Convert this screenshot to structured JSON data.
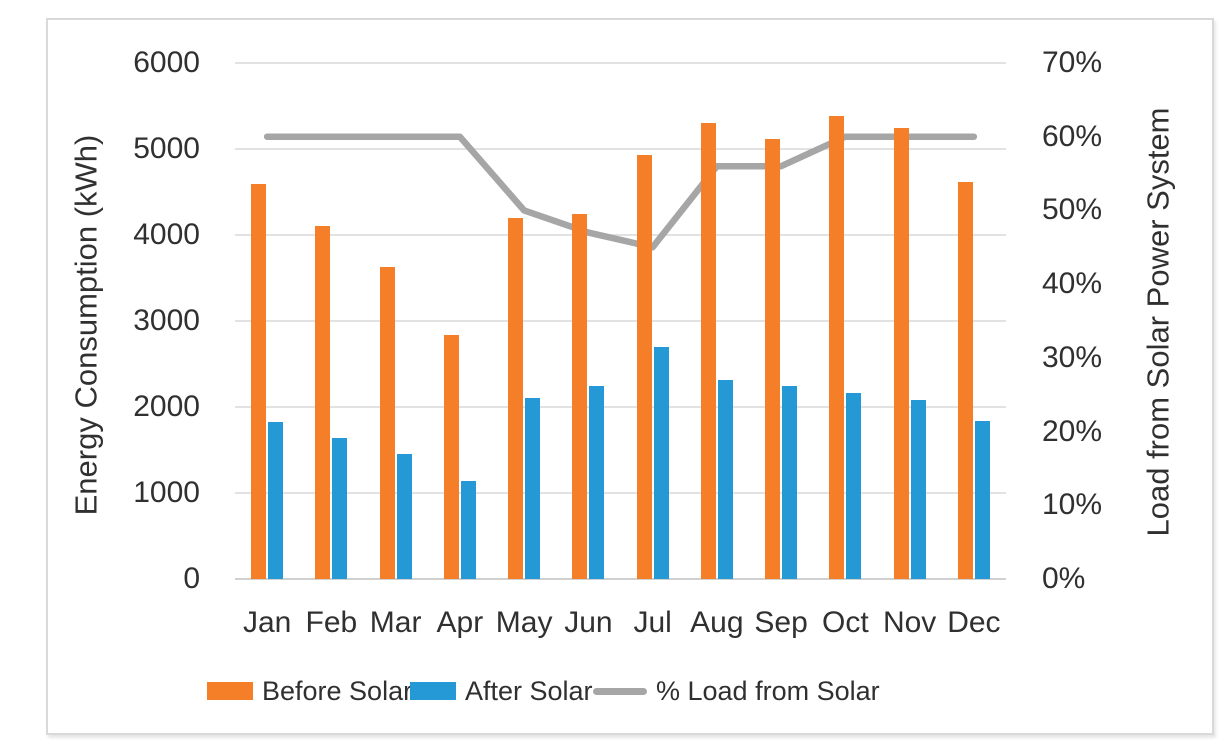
{
  "chart_data": {
    "type": "combo",
    "title": "",
    "categories": [
      "Jan",
      "Feb",
      "Mar",
      "Apr",
      "May",
      "Jun",
      "Jul",
      "Aug",
      "Sep",
      "Oct",
      "Nov",
      "Dec"
    ],
    "series": [
      {
        "name": "Before Solar",
        "type": "bar",
        "axis": "left",
        "color": "#f57e29",
        "values": [
          4590,
          4100,
          3630,
          2840,
          4200,
          4250,
          4930,
          5300,
          5120,
          5380,
          5240,
          4620
        ]
      },
      {
        "name": "After Solar",
        "type": "bar",
        "axis": "left",
        "color": "#2499d6",
        "values": [
          1830,
          1640,
          1450,
          1140,
          2110,
          2240,
          2700,
          2310,
          2250,
          2160,
          2080,
          1840
        ]
      },
      {
        "name": "% Load from Solar",
        "type": "line",
        "axis": "right",
        "color": "#a6a6a6",
        "values": [
          60,
          60,
          60,
          60,
          50,
          47,
          45,
          56,
          56,
          60,
          60,
          60
        ]
      }
    ],
    "left_axis": {
      "title": "Energy Consumption (kWh)",
      "min": 0,
      "max": 6000,
      "tick_interval": 1000,
      "tick_labels": [
        "0",
        "1000",
        "2000",
        "3000",
        "4000",
        "5000",
        "6000"
      ]
    },
    "right_axis": {
      "title": "Load from Solar Power System",
      "min": 0,
      "max": 70,
      "tick_interval": 10,
      "tick_labels": [
        "0%",
        "10%",
        "20%",
        "30%",
        "40%",
        "50%",
        "60%",
        "70%"
      ]
    },
    "legend": {
      "position": "bottom-left",
      "items": [
        "Before Solar",
        "After Solar",
        "% Load from Solar"
      ]
    },
    "grid": true,
    "gridline_color": "#d9d9d9",
    "axis_line_color": "#d0d0d0",
    "text_color": "#303030",
    "frame_border_color": "#d9d9d9"
  }
}
